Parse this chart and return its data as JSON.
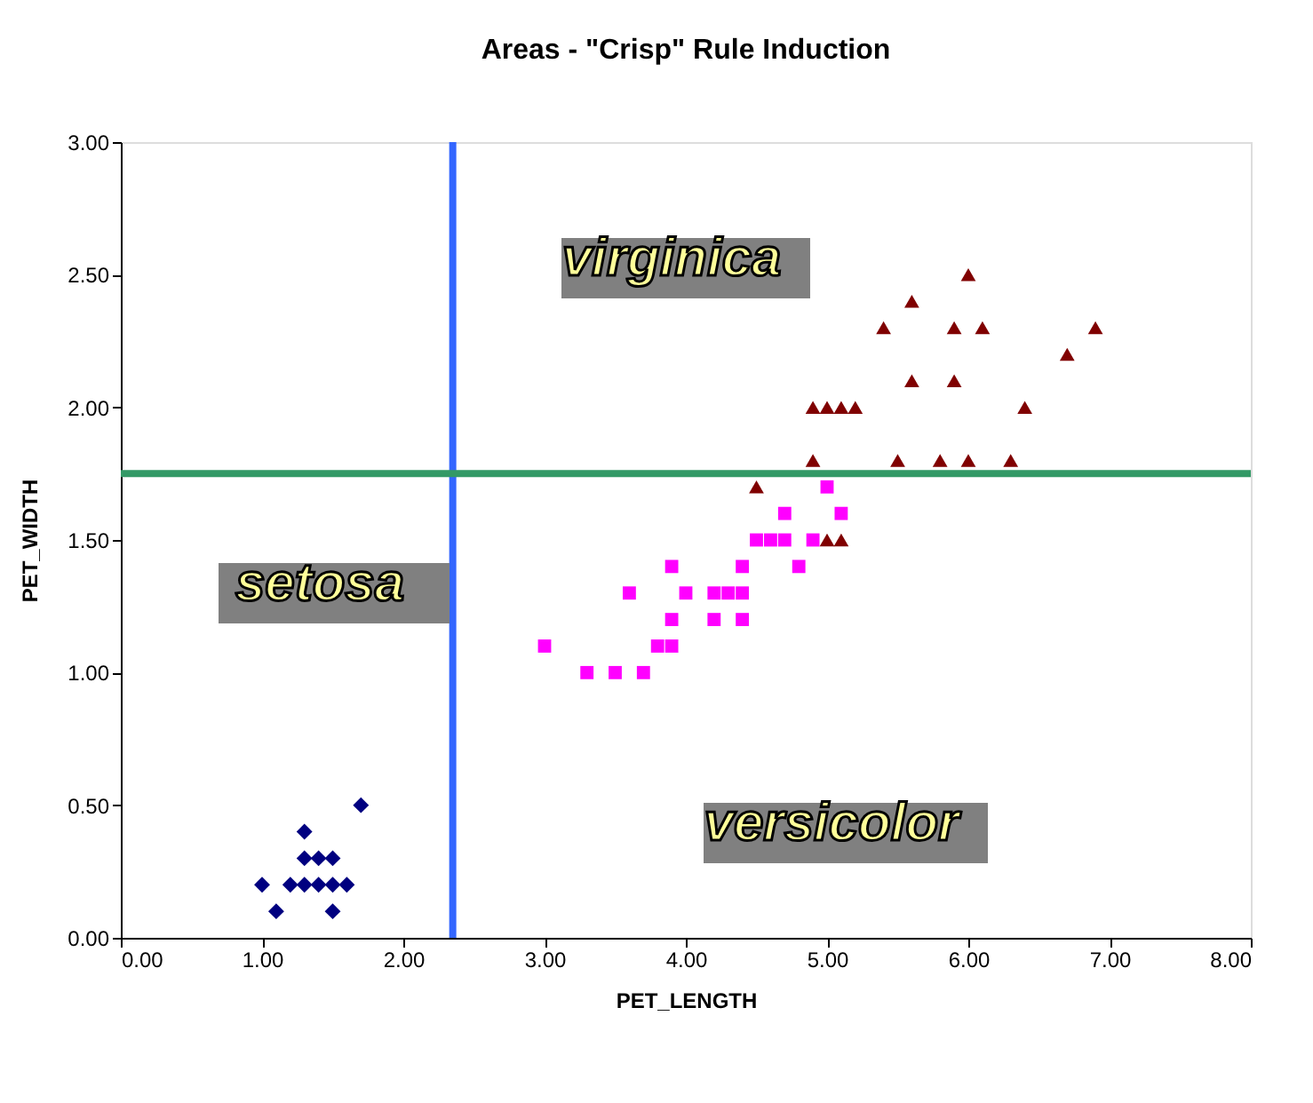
{
  "chart_data": {
    "type": "scatter",
    "title": "Areas - \"Crisp\" Rule Induction",
    "xlabel": "PET_LENGTH",
    "ylabel": "PET_WIDTH",
    "xlim": [
      0,
      8
    ],
    "ylim": [
      0,
      3
    ],
    "xticks": [
      {
        "value": 0,
        "label": "0.00"
      },
      {
        "value": 1,
        "label": "1.00"
      },
      {
        "value": 2,
        "label": "2.00"
      },
      {
        "value": 3,
        "label": "3.00"
      },
      {
        "value": 4,
        "label": "4.00"
      },
      {
        "value": 5,
        "label": "5.00"
      },
      {
        "value": 6,
        "label": "6.00"
      },
      {
        "value": 7,
        "label": "7.00"
      },
      {
        "value": 8,
        "label": "8.00"
      }
    ],
    "yticks": [
      {
        "value": 0,
        "label": "0.00"
      },
      {
        "value": 0.5,
        "label": "0.50"
      },
      {
        "value": 1,
        "label": "1.00"
      },
      {
        "value": 1.5,
        "label": "1.50"
      },
      {
        "value": 2,
        "label": "2.00"
      },
      {
        "value": 2.5,
        "label": "2.50"
      },
      {
        "value": 3,
        "label": "3.00"
      }
    ],
    "grid": false,
    "series": [
      {
        "color": "#000080",
        "marker": "diamond",
        "x": [
          1.0,
          1.1,
          1.2,
          1.3,
          1.4,
          1.5,
          1.6,
          1.3,
          1.4,
          1.5,
          1.3,
          1.5,
          1.7
        ],
        "values": [
          0.2,
          0.1,
          0.2,
          0.2,
          0.2,
          0.2,
          0.2,
          0.3,
          0.3,
          0.3,
          0.4,
          0.1,
          0.5
        ]
      },
      {
        "color": "#ff00ff",
        "marker": "square",
        "x": [
          3.0,
          3.3,
          3.5,
          3.7,
          3.6,
          3.8,
          3.9,
          3.9,
          3.9,
          4.0,
          4.2,
          4.3,
          4.4,
          4.2,
          4.4,
          4.4,
          4.5,
          4.6,
          4.7,
          4.7,
          4.9,
          4.8,
          5.0,
          5.1
        ],
        "values": [
          1.1,
          1.0,
          1.0,
          1.0,
          1.3,
          1.1,
          1.1,
          1.2,
          1.4,
          1.3,
          1.3,
          1.3,
          1.3,
          1.2,
          1.2,
          1.4,
          1.5,
          1.5,
          1.5,
          1.6,
          1.5,
          1.4,
          1.7,
          1.6
        ]
      },
      {
        "color": "#800000",
        "marker": "triangle",
        "x": [
          4.5,
          5.0,
          5.1,
          4.9,
          5.5,
          5.8,
          6.0,
          6.3,
          4.9,
          5.0,
          5.1,
          5.2,
          6.4,
          5.6,
          5.9,
          5.4,
          5.9,
          6.1,
          6.9,
          6.7,
          5.6,
          6.0
        ],
        "values": [
          1.7,
          1.5,
          1.5,
          1.8,
          1.8,
          1.8,
          1.8,
          1.8,
          2.0,
          2.0,
          2.0,
          2.0,
          2.0,
          2.1,
          2.1,
          2.3,
          2.3,
          2.3,
          2.3,
          2.2,
          2.4,
          2.5
        ]
      }
    ],
    "ref_lines": [
      {
        "axis": "x",
        "value": 2.35,
        "color": "#3366ff"
      },
      {
        "axis": "y",
        "value": 1.75,
        "color": "#339966"
      }
    ],
    "annotations": [
      "virginica",
      "setosa",
      "versicolor"
    ]
  }
}
